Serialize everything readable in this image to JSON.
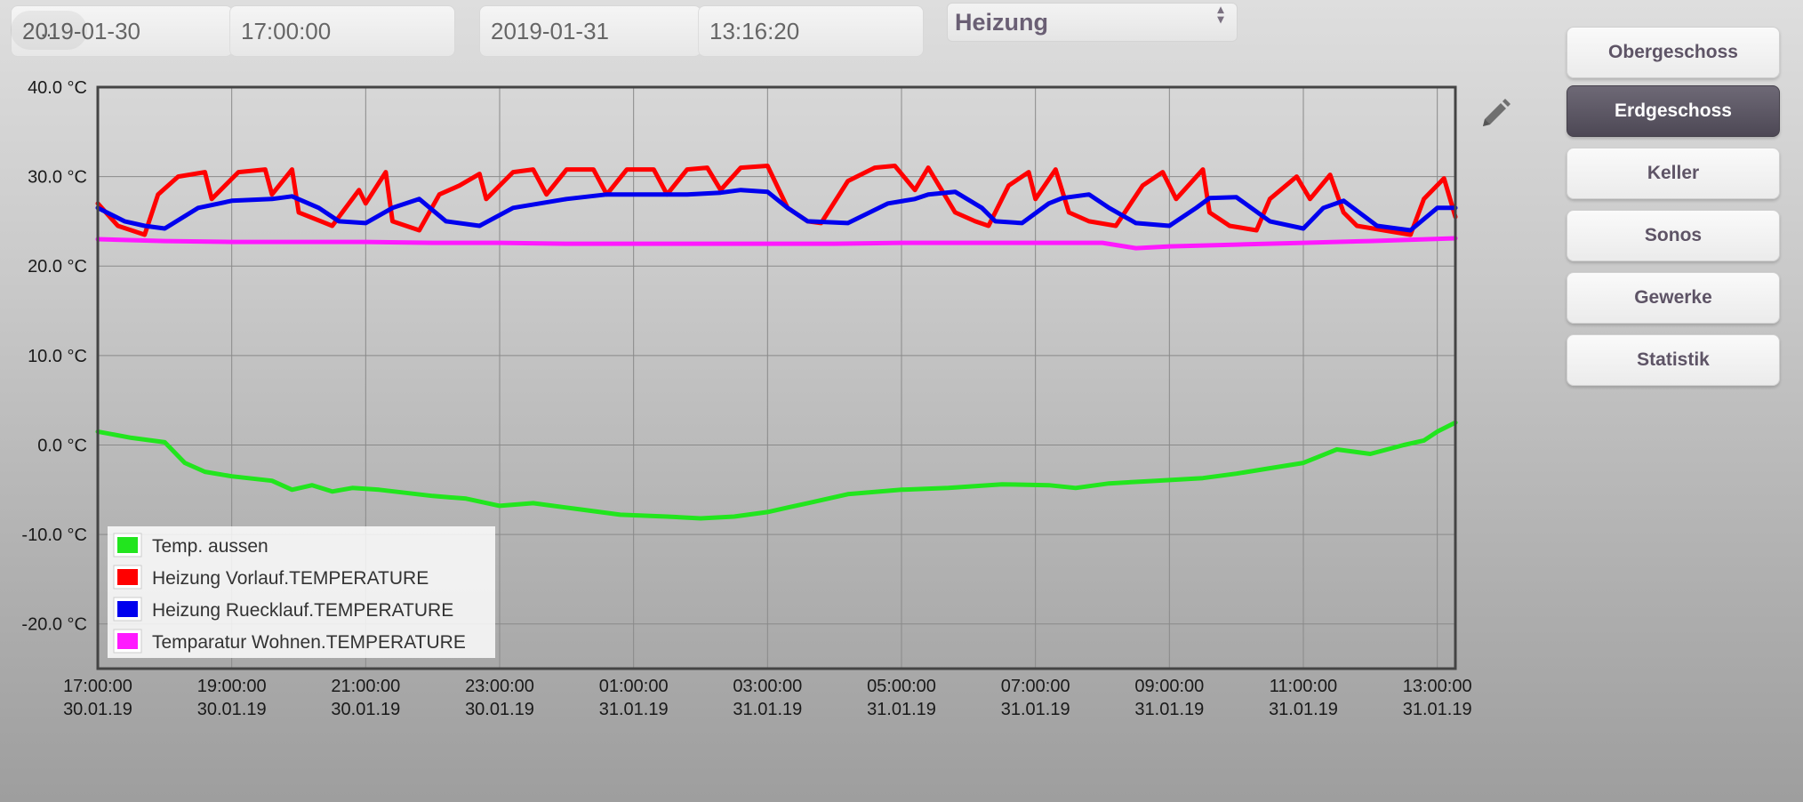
{
  "menu": {
    "icon": "menu-icon",
    "label": "..."
  },
  "range": {
    "start_date": "2019-01-30",
    "start_time": "17:00:00",
    "end_date": "2019-01-31",
    "end_time": "13:16:20"
  },
  "category_select": {
    "value": "Heizung",
    "icon": "updown-arrows-icon"
  },
  "nav": {
    "items": [
      {
        "label": "Obergeschoss",
        "active": false
      },
      {
        "label": "Erdgeschoss",
        "active": true
      },
      {
        "label": "Keller",
        "active": false
      },
      {
        "label": "Sonos",
        "active": false
      },
      {
        "label": "Gewerke",
        "active": false
      },
      {
        "label": "Statistik",
        "active": false
      }
    ]
  },
  "edit_icon": "pencil-icon",
  "chart_data": {
    "type": "line",
    "ylim": [
      -25,
      40
    ],
    "y_ticks": [
      40,
      30,
      20,
      10,
      0,
      -10,
      -20
    ],
    "y_tick_labels": [
      "40.0 °C",
      "30.0 °C",
      "20.0 °C",
      "10.0 °C",
      "0.0 °C",
      "-10.0 °C",
      "-20.0 °C"
    ],
    "xlim": [
      0,
      20.27
    ],
    "x_ticks": [
      0,
      2,
      4,
      6,
      8,
      10,
      12,
      14,
      16,
      18,
      20
    ],
    "x_tick_labels": [
      [
        "17:00:00",
        "30.01.19"
      ],
      [
        "19:00:00",
        "30.01.19"
      ],
      [
        "21:00:00",
        "30.01.19"
      ],
      [
        "23:00:00",
        "30.01.19"
      ],
      [
        "01:00:00",
        "31.01.19"
      ],
      [
        "03:00:00",
        "31.01.19"
      ],
      [
        "05:00:00",
        "31.01.19"
      ],
      [
        "07:00:00",
        "31.01.19"
      ],
      [
        "09:00:00",
        "31.01.19"
      ],
      [
        "11:00:00",
        "31.01.19"
      ],
      [
        "13:00:00",
        "31.01.19"
      ]
    ],
    "grid": true,
    "legend_position": "bottom-left",
    "series": [
      {
        "name": "Temp. aussen",
        "color": "#22e51e",
        "x": [
          0,
          0.5,
          0.8,
          1.0,
          1.3,
          1.6,
          2.0,
          2.6,
          2.9,
          3.2,
          3.5,
          3.8,
          4.2,
          5.0,
          5.5,
          6.0,
          6.5,
          7.2,
          7.8,
          8.5,
          9.0,
          9.5,
          10.0,
          10.6,
          11.2,
          12.0,
          12.7,
          13.5,
          14.2,
          14.6,
          15.1,
          15.8,
          16.5,
          17.0,
          17.5,
          18.0,
          18.5,
          19.0,
          19.5,
          19.8,
          20.0,
          20.27
        ],
        "y": [
          1.5,
          0.8,
          0.5,
          0.3,
          -2.0,
          -3.0,
          -3.5,
          -4.0,
          -5.0,
          -4.5,
          -5.2,
          -4.8,
          -5.0,
          -5.7,
          -6.0,
          -6.8,
          -6.5,
          -7.2,
          -7.8,
          -8.0,
          -8.2,
          -8.0,
          -7.5,
          -6.5,
          -5.5,
          -5.0,
          -4.8,
          -4.4,
          -4.5,
          -4.8,
          -4.3,
          -4.0,
          -3.7,
          -3.2,
          -2.6,
          -2.0,
          -0.5,
          -1.0,
          0.0,
          0.5,
          1.5,
          2.5
        ]
      },
      {
        "name": "Heizung Vorlauf.TEMPERATURE",
        "color": "#ff0000",
        "x": [
          0,
          0.3,
          0.7,
          0.9,
          1.2,
          1.6,
          1.7,
          2.1,
          2.5,
          2.6,
          2.9,
          3.0,
          3.5,
          3.9,
          4.0,
          4.3,
          4.4,
          4.8,
          5.1,
          5.4,
          5.7,
          5.8,
          6.2,
          6.5,
          6.7,
          7.0,
          7.4,
          7.6,
          7.9,
          8.3,
          8.5,
          8.8,
          9.1,
          9.3,
          9.6,
          10.0,
          10.3,
          10.6,
          10.8,
          11.2,
          11.6,
          11.9,
          12.2,
          12.4,
          12.8,
          13.1,
          13.3,
          13.6,
          13.9,
          14.0,
          14.3,
          14.5,
          14.8,
          15.2,
          15.6,
          15.9,
          16.1,
          16.5,
          16.6,
          16.9,
          17.3,
          17.5,
          17.9,
          18.1,
          18.4,
          18.6,
          18.8,
          19.2,
          19.6,
          19.8,
          20.1,
          20.27
        ],
        "y": [
          27,
          24.5,
          23.5,
          28,
          30,
          30.5,
          27.5,
          30.5,
          30.8,
          28,
          30.8,
          26,
          24.5,
          28.5,
          27,
          30.5,
          25,
          24,
          28,
          29,
          30.3,
          27.5,
          30.5,
          30.8,
          28,
          30.8,
          30.8,
          28,
          30.8,
          30.8,
          28,
          30.8,
          31,
          28.5,
          31,
          31.2,
          26.5,
          25,
          24.8,
          29.5,
          31,
          31.2,
          28.5,
          31,
          26,
          25,
          24.5,
          29,
          30.5,
          27.5,
          30.8,
          26,
          25,
          24.5,
          29,
          30.5,
          27.5,
          30.8,
          26,
          24.5,
          24,
          27.5,
          30,
          27.5,
          30.2,
          26,
          24.5,
          24,
          23.5,
          27.5,
          29.8,
          25.5
        ]
      },
      {
        "name": "Heizung Ruecklauf.TEMPERATURE",
        "color": "#0000ee",
        "x": [
          0,
          0.4,
          0.7,
          1.0,
          1.5,
          2.0,
          2.6,
          2.9,
          3.3,
          3.6,
          4.0,
          4.4,
          4.8,
          5.2,
          5.7,
          6.2,
          7.0,
          7.6,
          8.2,
          8.8,
          9.3,
          9.6,
          10.0,
          10.3,
          10.6,
          11.2,
          11.8,
          12.2,
          12.4,
          12.8,
          13.2,
          13.4,
          13.8,
          14.2,
          14.4,
          14.8,
          15.1,
          15.5,
          16.0,
          16.4,
          16.6,
          17.0,
          17.5,
          18.0,
          18.3,
          18.6,
          19.1,
          19.6,
          20.0,
          20.27
        ],
        "y": [
          26.5,
          25,
          24.5,
          24.2,
          26.5,
          27.3,
          27.5,
          27.8,
          26.5,
          25,
          24.8,
          26.5,
          27.5,
          25,
          24.5,
          26.5,
          27.5,
          28,
          28,
          28,
          28.2,
          28.5,
          28.3,
          26.5,
          25,
          24.8,
          27,
          27.5,
          28,
          28.3,
          26.5,
          25,
          24.8,
          27,
          27.6,
          28,
          26.5,
          24.8,
          24.5,
          26.5,
          27.6,
          27.7,
          25,
          24.2,
          26.5,
          27.3,
          24.5,
          24,
          26.5,
          26.5
        ]
      },
      {
        "name": "Temparatur Wohnen.TEMPERATURE",
        "color": "#ff19ff",
        "x": [
          0,
          1.0,
          2.0,
          3.0,
          4.0,
          5.0,
          6.0,
          7.0,
          8.0,
          9.0,
          10.0,
          11.0,
          12.0,
          13.0,
          14.0,
          15.0,
          15.5,
          16.0,
          17.0,
          18.0,
          19.0,
          20.27
        ],
        "y": [
          23.0,
          22.8,
          22.7,
          22.7,
          22.7,
          22.6,
          22.6,
          22.5,
          22.5,
          22.5,
          22.5,
          22.5,
          22.6,
          22.6,
          22.6,
          22.6,
          22.0,
          22.2,
          22.4,
          22.6,
          22.8,
          23.1
        ]
      }
    ]
  }
}
